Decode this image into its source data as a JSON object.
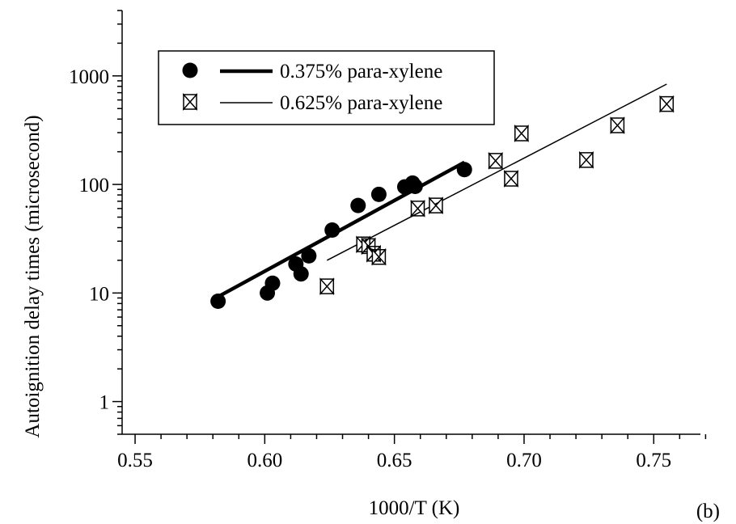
{
  "chart_data": {
    "type": "scatter",
    "title": "",
    "xlabel": "1000/T (K)",
    "ylabel": "Autoignition delay times (microsecond)",
    "panel_label": "(b)",
    "xlim": [
      0.545,
      0.768
    ],
    "ylim": [
      0.5,
      4000
    ],
    "y_scale": "log",
    "grid": false,
    "legend_position": "top-left",
    "x_ticks": [
      0.55,
      0.6,
      0.65,
      0.7,
      0.75
    ],
    "x_tick_labels": [
      "0.55",
      "0.60",
      "0.65",
      "0.70",
      "0.75"
    ],
    "y_ticks": [
      1,
      10,
      100,
      1000
    ],
    "y_tick_labels": [
      "1",
      "10",
      "100",
      "1000"
    ],
    "series": [
      {
        "name": "0.375% para-xylene",
        "marker": "filled-circle",
        "line_style": "thick",
        "color": "#000000",
        "x": [
          0.582,
          0.601,
          0.603,
          0.612,
          0.614,
          0.617,
          0.626,
          0.636,
          0.644,
          0.654,
          0.657,
          0.658,
          0.677
        ],
        "y": [
          8.4,
          10.0,
          12.3,
          18.5,
          15.0,
          22.0,
          38.0,
          64.0,
          81.0,
          95.0,
          103.0,
          96.0,
          137.0
        ],
        "fit": {
          "x": [
            0.58,
            0.677
          ],
          "y": [
            8.7,
            160.0
          ]
        }
      },
      {
        "name": "0.625% para-xylene",
        "marker": "bowtie",
        "line_style": "thin",
        "color": "#000000",
        "x": [
          0.624,
          0.638,
          0.64,
          0.642,
          0.644,
          0.659,
          0.666,
          0.689,
          0.695,
          0.699,
          0.724,
          0.736,
          0.755
        ],
        "y": [
          11.5,
          28.0,
          27.0,
          23.0,
          21.5,
          60.0,
          64.0,
          165.0,
          113.0,
          295.0,
          168.0,
          350.0,
          550.0
        ],
        "fit": {
          "x": [
            0.624,
            0.755
          ],
          "y": [
            20.0,
            840.0
          ]
        }
      }
    ]
  }
}
